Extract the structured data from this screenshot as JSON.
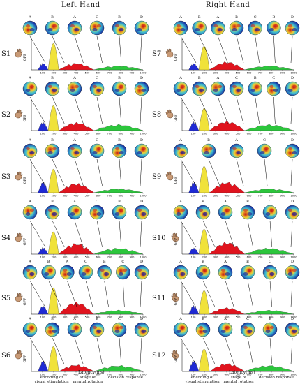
{
  "headers": {
    "left": "Left Hand",
    "right": "Right Hand"
  },
  "topo_letters_default": [
    "A",
    "B",
    "A",
    "C",
    "B",
    "D"
  ],
  "subjects": [
    {
      "label": "S1",
      "letters": [
        "A",
        "B",
        "A",
        "C",
        "B",
        "D"
      ]
    },
    {
      "label": "S2",
      "letters": [
        "A",
        "B",
        "A",
        "C",
        "B",
        "D"
      ]
    },
    {
      "label": "S3",
      "letters": [
        "A",
        "B",
        "A",
        "C",
        "B",
        "D"
      ]
    },
    {
      "label": "S4",
      "letters": [
        "A",
        "B",
        "A",
        "C",
        "B",
        "D"
      ]
    },
    {
      "label": "S5",
      "letters": [
        "A",
        "B",
        "A",
        "C",
        "B",
        "C",
        "D"
      ]
    },
    {
      "label": "S6",
      "letters": [
        "A",
        "B",
        "A",
        "B",
        "C",
        "D"
      ]
    },
    {
      "label": "S7",
      "letters": [
        "A",
        "B",
        "A",
        "B",
        "C",
        "B",
        "D"
      ]
    },
    {
      "label": "S8",
      "letters": [
        "A",
        "B",
        "A",
        "C",
        "B",
        "C",
        "D"
      ]
    },
    {
      "label": "S9",
      "letters": [
        "A",
        "B",
        "A",
        "C",
        "D"
      ]
    },
    {
      "label": "S10",
      "letters": [
        "A",
        "B",
        "A",
        "B",
        "C",
        "D"
      ]
    },
    {
      "label": "S11",
      "letters": [
        "A",
        "B",
        "A",
        "B",
        "C",
        "D"
      ]
    },
    {
      "label": "S12",
      "letters": [
        "A",
        "B",
        "A",
        "C",
        "B",
        "D"
      ]
    }
  ],
  "axis": {
    "ylabel": "GFP",
    "xticks": [
      "100",
      "200",
      "300",
      "400",
      "500",
      "600",
      "700",
      "800",
      "900",
      "1000"
    ],
    "xlabel": "Latency(ms)"
  },
  "stages": {
    "encoding": "encoding of\nvisual stimulation",
    "rotation": "stage of\nmental rotation",
    "decision": "decision response"
  },
  "colors": {
    "blue": "#1f2ad4",
    "yellow": "#f0e23a",
    "red": "#e0141e",
    "green": "#2cc63c",
    "black": "#000000"
  }
}
